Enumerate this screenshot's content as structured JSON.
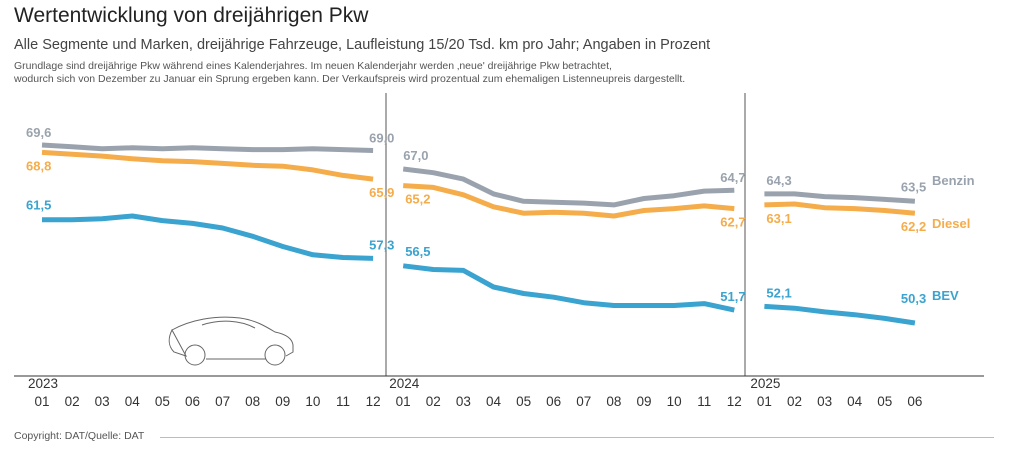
{
  "title": "Wertentwicklung von dreijährigen Pkw",
  "subtitle": "Alle Segmente und Marken, dreijährige Fahrzeuge, Laufleistung 15/20 Tsd. km pro Jahr; Angaben in Prozent",
  "note_line1": "Grundlage sind dreijährige Pkw während eines Kalenderjahres. Im neuen Kalenderjahr werden ‚neue' dreijährige Pkw betrachtet,",
  "note_line2": "wodurch sich von Dezember zu Januar ein Sprung ergeben kann. Der Verkaufspreis wird prozentual zum ehemaligen Listenneupreis dargestellt.",
  "footer": "Copyright: DAT/Quelle: DAT",
  "colors": {
    "Benzin": "#9aa3ad",
    "Diesel": "#f5ac4b",
    "BEV": "#3aa3cf",
    "axis": "#333333"
  },
  "chart_data": {
    "type": "line",
    "title": "Wertentwicklung von dreijährigen Pkw",
    "ylabel": "Prozent",
    "ylim": [
      46,
      71
    ],
    "years": [
      "2023",
      "2024",
      "2025"
    ],
    "x": [
      [
        "01",
        "02",
        "03",
        "04",
        "05",
        "06",
        "07",
        "08",
        "09",
        "10",
        "11",
        "12"
      ],
      [
        "01",
        "02",
        "03",
        "04",
        "05",
        "06",
        "07",
        "08",
        "09",
        "10",
        "11",
        "12"
      ],
      [
        "01",
        "02",
        "03",
        "04",
        "05",
        "06"
      ]
    ],
    "series": [
      {
        "name": "Benzin",
        "segments": [
          [
            69.6,
            69.4,
            69.2,
            69.3,
            69.2,
            69.3,
            69.2,
            69.1,
            69.1,
            69.2,
            69.1,
            69.0
          ],
          [
            67.0,
            66.6,
            65.9,
            64.3,
            63.5,
            63.4,
            63.3,
            63.1,
            63.8,
            64.1,
            64.6,
            64.7
          ],
          [
            64.3,
            64.3,
            64.0,
            63.9,
            63.7,
            63.5
          ]
        ],
        "labels": {
          "start": [
            "69,6",
            "67,0",
            "64,3"
          ],
          "end": [
            "69,0",
            "64,7",
            "63,5"
          ]
        }
      },
      {
        "name": "Diesel",
        "segments": [
          [
            68.8,
            68.6,
            68.4,
            68.1,
            67.9,
            67.8,
            67.6,
            67.4,
            67.3,
            66.9,
            66.3,
            65.9
          ],
          [
            65.2,
            65.0,
            64.2,
            62.9,
            62.2,
            62.3,
            62.2,
            61.9,
            62.5,
            62.7,
            63.0,
            62.7
          ],
          [
            63.1,
            63.2,
            62.8,
            62.7,
            62.5,
            62.2
          ]
        ],
        "labels": {
          "start": [
            "68,8",
            "65,2",
            "63,1"
          ],
          "end": [
            "65,9",
            "62,7",
            "62,2"
          ]
        }
      },
      {
        "name": "BEV",
        "segments": [
          [
            61.5,
            61.5,
            61.6,
            61.9,
            61.4,
            61.1,
            60.6,
            59.7,
            58.6,
            57.7,
            57.4,
            57.3
          ],
          [
            56.5,
            56.1,
            56.0,
            54.2,
            53.5,
            53.1,
            52.5,
            52.2,
            52.2,
            52.2,
            52.4,
            51.7
          ],
          [
            52.1,
            51.9,
            51.5,
            51.2,
            50.8,
            50.3
          ]
        ],
        "labels": {
          "start": [
            "61,5",
            "56,5",
            "52,1"
          ],
          "end": [
            "57,3",
            "51,7",
            "50,3"
          ]
        }
      }
    ]
  }
}
